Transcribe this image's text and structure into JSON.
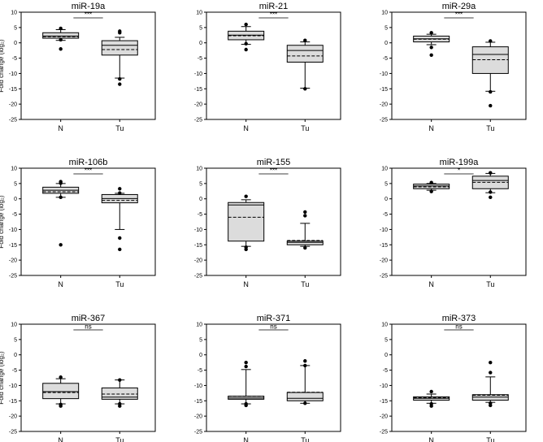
{
  "chart_data": [
    {
      "type": "box",
      "title": "miR-19a",
      "ylabel": "Fold change (log₂)",
      "ylim": [
        -25,
        10
      ],
      "yticks": [
        10,
        5,
        0,
        -5,
        -10,
        -15,
        -20,
        -25
      ],
      "categories": [
        "N",
        "Tu"
      ],
      "significance": "***",
      "boxes": [
        {
          "q1": 1.5,
          "median": 2.2,
          "mean": 2.0,
          "q3": 3.3,
          "whisker_low": 0.8,
          "whisker_high": 4.3,
          "outliers": [
            4.7,
            1.0,
            -2.0
          ]
        },
        {
          "q1": -4.0,
          "median": -0.8,
          "mean": -2.2,
          "q3": 0.7,
          "whisker_low": -11.5,
          "whisker_high": 1.8,
          "outliers": [
            3.8,
            3.3,
            -11.8,
            -13.5
          ]
        }
      ]
    },
    {
      "type": "box",
      "title": "miR-21",
      "ylabel": "",
      "ylim": [
        -25,
        10
      ],
      "yticks": [
        10,
        5,
        0,
        -5,
        -10,
        -15,
        -20,
        -25
      ],
      "categories": [
        "N",
        "Tu"
      ],
      "significance": "***",
      "boxes": [
        {
          "q1": 1.0,
          "median": 2.5,
          "mean": 2.3,
          "q3": 3.8,
          "whisker_low": -0.5,
          "whisker_high": 5.3,
          "outliers": [
            6.0,
            -0.3,
            -2.2
          ]
        },
        {
          "q1": -6.3,
          "median": -2.5,
          "mean": -4.3,
          "q3": -0.8,
          "whisker_low": -14.8,
          "whisker_high": 0.3,
          "outliers": [
            0.8,
            -15.0
          ]
        }
      ]
    },
    {
      "type": "box",
      "title": "miR-29a",
      "ylabel": "",
      "ylim": [
        -25,
        10
      ],
      "yticks": [
        10,
        5,
        0,
        -5,
        -10,
        -15,
        -20,
        -25
      ],
      "categories": [
        "N",
        "Tu"
      ],
      "significance": "***",
      "boxes": [
        {
          "q1": 0.3,
          "median": 1.3,
          "mean": 1.2,
          "q3": 2.2,
          "whisker_low": -0.6,
          "whisker_high": 2.8,
          "outliers": [
            3.3,
            -1.5,
            -4.0
          ]
        },
        {
          "q1": -10.0,
          "median": -3.8,
          "mean": -5.5,
          "q3": -1.3,
          "whisker_low": -15.8,
          "whisker_high": 0.2,
          "outliers": [
            0.6,
            -16.0,
            -20.5
          ]
        }
      ]
    },
    {
      "type": "box",
      "title": "miR-106b",
      "ylabel": "Fold change (log₂)",
      "ylim": [
        -25,
        10
      ],
      "yticks": [
        10,
        5,
        0,
        -5,
        -10,
        -15,
        -20,
        -25
      ],
      "categories": [
        "N",
        "Tu"
      ],
      "significance": "***",
      "boxes": [
        {
          "q1": 1.8,
          "median": 2.8,
          "mean": 2.3,
          "q3": 3.8,
          "whisker_low": 0.5,
          "whisker_high": 5.0,
          "outliers": [
            5.6,
            5.1,
            0.5,
            -15.0
          ]
        },
        {
          "q1": -1.3,
          "median": 0.1,
          "mean": -0.5,
          "q3": 1.4,
          "whisker_low": -10.0,
          "whisker_high": 1.8,
          "outliers": [
            3.3,
            1.9,
            -12.8,
            -16.5
          ]
        }
      ]
    },
    {
      "type": "box",
      "title": "miR-155",
      "ylabel": "",
      "ylim": [
        -25,
        10
      ],
      "yticks": [
        10,
        5,
        0,
        -5,
        -10,
        -15,
        -20,
        -25
      ],
      "categories": [
        "N",
        "Tu"
      ],
      "significance": "***",
      "boxes": [
        {
          "q1": -13.8,
          "median": -2.0,
          "mean": -6.0,
          "q3": -1.2,
          "whisker_low": -15.5,
          "whisker_high": -0.3,
          "outliers": [
            0.8,
            -15.8,
            -16.5
          ]
        },
        {
          "q1": -15.0,
          "median": -14.2,
          "mean": -13.6,
          "q3": -13.8,
          "whisker_low": -15.5,
          "whisker_high": -8.0,
          "outliers": [
            -4.3,
            -5.5,
            -16.0
          ]
        }
      ]
    },
    {
      "type": "box",
      "title": "miR-199a",
      "ylabel": "",
      "ylim": [
        -25,
        10
      ],
      "yticks": [
        10,
        5,
        0,
        -5,
        -10,
        -15,
        -20,
        -25
      ],
      "categories": [
        "N",
        "Tu"
      ],
      "significance": "*",
      "boxes": [
        {
          "q1": 3.3,
          "median": 4.2,
          "mean": 3.9,
          "q3": 4.8,
          "whisker_low": 2.8,
          "whisker_high": 5.0,
          "outliers": [
            5.3,
            2.4
          ]
        },
        {
          "q1": 3.3,
          "median": 6.0,
          "mean": 5.4,
          "q3": 7.4,
          "whisker_low": 2.0,
          "whisker_high": 8.3,
          "outliers": [
            8.5,
            2.2,
            0.5
          ]
        }
      ]
    },
    {
      "type": "box",
      "title": "miR-367",
      "ylabel": "Fold change (log₂)",
      "ylim": [
        -25,
        10
      ],
      "yticks": [
        10,
        5,
        0,
        -5,
        -10,
        -15,
        -20,
        -25
      ],
      "categories": [
        "N",
        "Tu"
      ],
      "significance": "ns",
      "boxes": [
        {
          "q1": -14.3,
          "median": -12.0,
          "mean": -12.3,
          "q3": -9.3,
          "whisker_low": -16.0,
          "whisker_high": -7.8,
          "outliers": [
            -7.3,
            -16.2,
            -16.7
          ]
        },
        {
          "q1": -14.5,
          "median": -13.8,
          "mean": -12.8,
          "q3": -10.8,
          "whisker_low": -16.0,
          "whisker_high": -8.2,
          "outliers": [
            -8.2,
            -16.0,
            -16.7
          ]
        }
      ]
    },
    {
      "type": "box",
      "title": "miR-371",
      "ylabel": "",
      "ylim": [
        -25,
        10
      ],
      "yticks": [
        10,
        5,
        0,
        -5,
        -10,
        -15,
        -20,
        -25
      ],
      "categories": [
        "N",
        "Tu"
      ],
      "significance": "ns",
      "boxes": [
        {
          "q1": -14.5,
          "median": -14.1,
          "mean": -13.5,
          "q3": -13.5,
          "whisker_low": -16.0,
          "whisker_high": -4.8,
          "outliers": [
            -2.5,
            -3.8,
            -16.0,
            -16.5
          ]
        },
        {
          "q1": -15.0,
          "median": -14.2,
          "mean": -12.2,
          "q3": -12.3,
          "whisker_low": -15.8,
          "whisker_high": -3.5,
          "outliers": [
            -2.0,
            -3.5,
            -15.8
          ]
        }
      ]
    },
    {
      "type": "box",
      "title": "miR-373",
      "ylabel": "",
      "ylim": [
        -25,
        10
      ],
      "yticks": [
        10,
        5,
        0,
        -5,
        -10,
        -15,
        -20,
        -25
      ],
      "categories": [
        "N",
        "Tu"
      ],
      "significance": "ns",
      "boxes": [
        {
          "q1": -14.8,
          "median": -14.2,
          "mean": -14.0,
          "q3": -13.7,
          "whisker_low": -15.8,
          "whisker_high": -12.8,
          "outliers": [
            -12.0,
            -16.0,
            -16.7
          ]
        },
        {
          "q1": -14.8,
          "median": -13.8,
          "mean": -13.2,
          "q3": -13.0,
          "whisker_low": -15.5,
          "whisker_high": -7.2,
          "outliers": [
            -2.5,
            -5.8,
            -15.8,
            -16.5
          ]
        }
      ]
    }
  ]
}
